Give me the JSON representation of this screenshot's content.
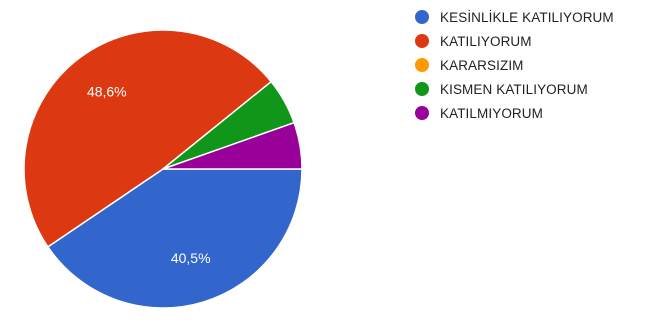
{
  "chart_data": {
    "type": "pie",
    "slices": [
      {
        "label": "KESİNLİKLE KATILIYORUM",
        "value": 40.5,
        "color": "#3366cc",
        "data_label": "40,5%"
      },
      {
        "label": "KATILIYORUM",
        "value": 48.6,
        "color": "#dc3912",
        "data_label": "48,6%"
      },
      {
        "label": "KARARSIZIM",
        "value": 0,
        "color": "#ff9900",
        "data_label": ""
      },
      {
        "label": "KISMEN KATILIYORUM",
        "value": 5.4,
        "color": "#109618",
        "data_label": ""
      },
      {
        "label": "KATILMIYORUM",
        "value": 5.4,
        "color": "#990099",
        "data_label": ""
      }
    ],
    "start_angle": "3 o'clock",
    "direction": "clockwise",
    "legend_position": "right"
  }
}
